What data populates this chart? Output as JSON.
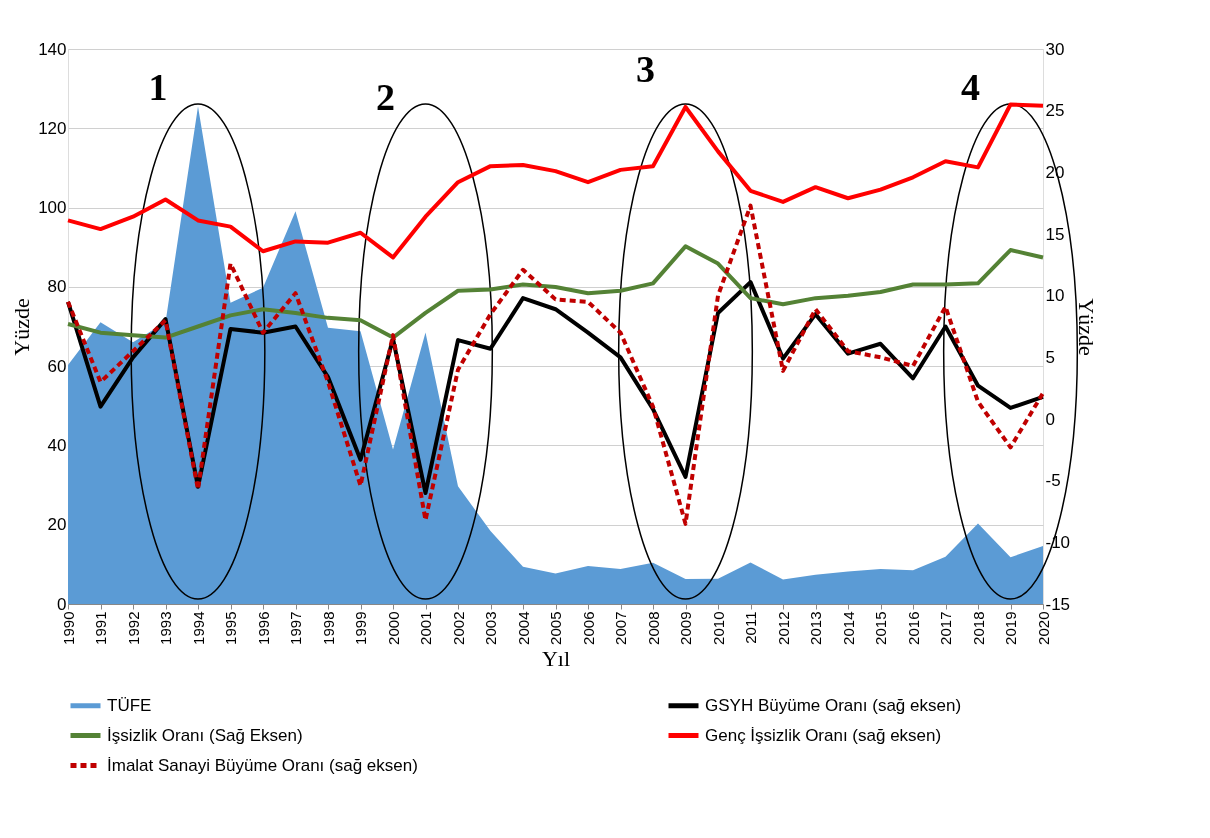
{
  "chart_data": {
    "type": "line",
    "xlabel": "Yıl",
    "ylabel": "Yüzde",
    "y2label": "Yüzde",
    "categories": [
      "1990",
      "1991",
      "1992",
      "1993",
      "1994",
      "1995",
      "1996",
      "1997",
      "1998",
      "1999",
      "2000",
      "2001",
      "2002",
      "2003",
      "2004",
      "2005",
      "2006",
      "2007",
      "2008",
      "2009",
      "2010",
      "2011",
      "2012",
      "2013",
      "2014",
      "2015",
      "2016",
      "2017",
      "2018",
      "2019",
      "2020"
    ],
    "series": [
      {
        "name": "TÜFE",
        "type": "area",
        "color": "#5b9bd5",
        "values": [
          60.3,
          71.1,
          66.0,
          71.1,
          125.5,
          76.0,
          79.8,
          99.1,
          69.7,
          68.8,
          39.0,
          68.5,
          29.7,
          18.4,
          9.4,
          7.7,
          9.6,
          8.8,
          10.4,
          6.3,
          6.4,
          10.5,
          6.2,
          7.4,
          8.2,
          8.8,
          8.5,
          11.9,
          20.3,
          11.8,
          14.6
        ]
      },
      {
        "name": "GSYH Büyüme Oranı (sağ eksen)",
        "axis": "y2",
        "color": "#000000",
        "values": [
          9.5,
          1.0,
          5.0,
          8.1,
          -5.5,
          7.3,
          7.0,
          7.5,
          3.4,
          -3.3,
          6.5,
          -6.0,
          6.4,
          5.7,
          9.8,
          8.9,
          7.0,
          5.0,
          0.8,
          -4.7,
          8.6,
          11.1,
          4.9,
          8.5,
          5.3,
          6.1,
          3.3,
          7.5,
          2.7,
          0.9,
          1.8
        ]
      },
      {
        "name": "İşsizlik Oranı (Sağ Eksen)",
        "axis": "y2",
        "color": "#548235",
        "values": [
          7.7,
          7.0,
          6.8,
          6.6,
          7.5,
          8.4,
          8.9,
          8.6,
          8.2,
          8.0,
          6.6,
          8.6,
          10.4,
          10.5,
          10.9,
          10.7,
          10.2,
          10.4,
          11.0,
          14.0,
          12.6,
          9.8,
          9.3,
          9.8,
          10.0,
          10.3,
          10.9,
          10.9,
          11.0,
          13.7,
          13.1
        ]
      },
      {
        "name": "Genç İşsizlik Oranı (sağ eksen)",
        "axis": "y2",
        "color": "#ff0000",
        "values": [
          16.1,
          15.4,
          16.4,
          17.8,
          16.1,
          15.6,
          13.6,
          14.4,
          14.3,
          15.1,
          13.1,
          16.4,
          19.2,
          20.5,
          20.6,
          20.1,
          19.2,
          20.2,
          20.5,
          25.3,
          21.7,
          18.5,
          17.6,
          18.8,
          17.9,
          18.6,
          19.6,
          20.9,
          20.4,
          25.5,
          25.4
        ]
      },
      {
        "name": "İmalat Sanayi Büyüme Oranı (sağ eksen)",
        "axis": "y2",
        "color": "#c00000",
        "line_style": "dashed",
        "values": [
          9.5,
          3.0,
          5.5,
          8.0,
          -5.7,
          12.6,
          7.0,
          10.2,
          3.0,
          -5.4,
          6.8,
          -8.2,
          4.0,
          8.5,
          12.1,
          9.7,
          9.5,
          7.0,
          1.0,
          -8.5,
          10.0,
          17.3,
          3.9,
          8.9,
          5.5,
          5.0,
          4.3,
          9.1,
          1.4,
          -2.3,
          2.1
        ]
      }
    ],
    "ylim": [
      0,
      140
    ],
    "yticks": [
      0,
      20,
      40,
      60,
      80,
      100,
      120,
      140
    ],
    "y2lim": [
      -15,
      30
    ],
    "y2ticks": [
      -15,
      -10,
      -5,
      0,
      5,
      10,
      15,
      20,
      25,
      30
    ],
    "grid": "y",
    "legend": "bottom",
    "annotations": [
      "1",
      "2",
      "3",
      "4"
    ]
  }
}
